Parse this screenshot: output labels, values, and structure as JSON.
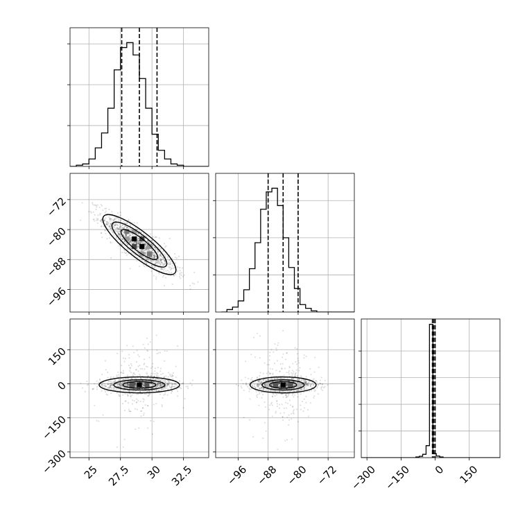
{
  "figure": {
    "type": "corner-plot"
  },
  "chart_data": [
    {
      "id": "hist-p0",
      "type": "histogram",
      "row": 0,
      "col": 0,
      "x_range": [
        23.5,
        34.5
      ],
      "y_range": [
        0,
        1.12
      ],
      "bins": {
        "start": 23.5,
        "width": 0.5,
        "counts": [
          0,
          0.01,
          0.02,
          0.06,
          0.15,
          0.27,
          0.47,
          0.78,
          0.96,
          1.0,
          0.9,
          0.71,
          0.47,
          0.26,
          0.13,
          0.06,
          0.02,
          0.01,
          0,
          0,
          0,
          0
        ]
      },
      "quantiles": [
        27.6,
        29.0,
        30.4
      ],
      "x_ticks": [
        25.0,
        27.5,
        30.0,
        32.5
      ],
      "y_ticks": [
        0.33,
        0.66,
        0.99
      ],
      "show_x_tick_labels": false,
      "show_y_tick_labels": false
    },
    {
      "id": "joint-p0-p1",
      "type": "scatter-contour",
      "row": 1,
      "col": 0,
      "x_range": [
        23.5,
        34.5
      ],
      "y_range": [
        -102,
        -65
      ],
      "y_ticks": [
        -72,
        -80,
        -88,
        -96
      ],
      "x_ticks": [
        25.0,
        27.5,
        30.0,
        32.5
      ],
      "show_x_tick_labels": false,
      "show_y_tick_labels": true,
      "scatter": {
        "center": [
          29.0,
          -84.0
        ],
        "sd": [
          1.45,
          4.0
        ],
        "correlation": -0.85,
        "n": 1300
      },
      "contour_levels_sigma": [
        1,
        1.5,
        2
      ],
      "density_cells": [
        {
          "x": 28.6,
          "y": -82.5,
          "shade": "#000000"
        },
        {
          "x": 29.2,
          "y": -84.5,
          "shade": "#000000"
        },
        {
          "x": 28.6,
          "y": -84.5,
          "shade": "#444444"
        },
        {
          "x": 29.2,
          "y": -82.5,
          "shade": "#444444"
        },
        {
          "x": 28.0,
          "y": -80.5,
          "shade": "#777777"
        },
        {
          "x": 29.8,
          "y": -86.5,
          "shade": "#777777"
        },
        {
          "x": 28.0,
          "y": -82.5,
          "shade": "#999999"
        },
        {
          "x": 29.8,
          "y": -84.5,
          "shade": "#999999"
        },
        {
          "x": 28.6,
          "y": -80.5,
          "shade": "#999999"
        },
        {
          "x": 29.2,
          "y": -86.5,
          "shade": "#999999"
        }
      ]
    },
    {
      "id": "hist-p1",
      "type": "histogram",
      "row": 1,
      "col": 1,
      "x_range": [
        -102,
        -65
      ],
      "y_range": [
        0,
        1.12
      ],
      "bins": {
        "start": -100.5,
        "width": 1.5,
        "counts": [
          0,
          0.02,
          0.04,
          0.09,
          0.18,
          0.35,
          0.56,
          0.83,
          0.97,
          1.0,
          0.86,
          0.6,
          0.36,
          0.19,
          0.06,
          0.03,
          0.01,
          0,
          0,
          0,
          0,
          0,
          0,
          0
        ]
      },
      "quantiles": [
        -88.0,
        -84.0,
        -80.0
      ],
      "x_ticks": [
        -96,
        -88,
        -80,
        -72
      ],
      "y_ticks": [
        0.3,
        0.6,
        0.9
      ],
      "show_x_tick_labels": false,
      "show_y_tick_labels": false
    },
    {
      "id": "joint-p0-p2",
      "type": "scatter-contour",
      "row": 2,
      "col": 0,
      "x_range": [
        23.5,
        34.5
      ],
      "y_range": [
        -325,
        285
      ],
      "x_ticks": [
        25.0,
        27.5,
        30.0,
        32.5
      ],
      "y_ticks": [
        150,
        0,
        -150,
        -300
      ],
      "show_x_tick_labels": true,
      "show_y_tick_labels": true,
      "scatter": {
        "center": [
          29.0,
          -5.0
        ],
        "sd": [
          1.45,
          16.0
        ],
        "correlation": 0,
        "n": 1300,
        "outlier_sd": 90
      },
      "contour_levels_sigma": [
        0.9,
        1.4,
        2.2
      ],
      "density_cells": [
        {
          "x": 29.0,
          "y": -5,
          "shade": "#000000"
        },
        {
          "x": 28.4,
          "y": -5,
          "shade": "#555555"
        },
        {
          "x": 29.6,
          "y": -5,
          "shade": "#555555"
        },
        {
          "x": 27.8,
          "y": -5,
          "shade": "#bbbbbb"
        },
        {
          "x": 30.2,
          "y": -5,
          "shade": "#bbbbbb"
        }
      ]
    },
    {
      "id": "joint-p1-p2",
      "type": "scatter-contour",
      "row": 2,
      "col": 1,
      "x_range": [
        -102,
        -65
      ],
      "y_range": [
        -325,
        285
      ],
      "x_ticks": [
        -96,
        -88,
        -80,
        -72
      ],
      "y_ticks": [
        150,
        0,
        -150,
        -300
      ],
      "show_x_tick_labels": true,
      "show_y_tick_labels": false,
      "scatter": {
        "center": [
          -84.0,
          -5.0
        ],
        "sd": [
          4.0,
          16.0
        ],
        "correlation": 0,
        "n": 1300,
        "outlier_sd": 90
      },
      "contour_levels_sigma": [
        0.9,
        1.4,
        2.2
      ],
      "density_cells": [
        {
          "x": -84.0,
          "y": -5,
          "shade": "#000000"
        },
        {
          "x": -86.0,
          "y": -5,
          "shade": "#555555"
        },
        {
          "x": -82.0,
          "y": -5,
          "shade": "#555555"
        },
        {
          "x": -88.0,
          "y": -5,
          "shade": "#bbbbbb"
        },
        {
          "x": -80.0,
          "y": -5,
          "shade": "#bbbbbb"
        }
      ]
    },
    {
      "id": "hist-p2",
      "type": "histogram",
      "row": 2,
      "col": 2,
      "x_range": [
        -325,
        285
      ],
      "y_range": [
        0,
        1.04
      ],
      "bins": {
        "start": -325,
        "width": 15,
        "counts": [
          0,
          0,
          0,
          0,
          0,
          0,
          0,
          0,
          0,
          0,
          0,
          0,
          0,
          0,
          0,
          0,
          0.005,
          0.01,
          0.025,
          0.09,
          1.0,
          0.03,
          0.012,
          0.005,
          0,
          0,
          0,
          0,
          0,
          0,
          0,
          0,
          0,
          0,
          0,
          0,
          0,
          0,
          0,
          0,
          0
        ]
      },
      "quantiles": [
        -12,
        -6,
        0
      ],
      "x_ticks": [
        -300,
        -150,
        0,
        150
      ],
      "y_ticks": [
        0.2,
        0.4,
        0.6,
        0.8
      ],
      "show_x_tick_labels": true,
      "show_y_tick_labels": false
    }
  ],
  "style": {
    "line_color": "#000000",
    "grid_color": "#b0b0b0",
    "point_color": "#000000"
  }
}
